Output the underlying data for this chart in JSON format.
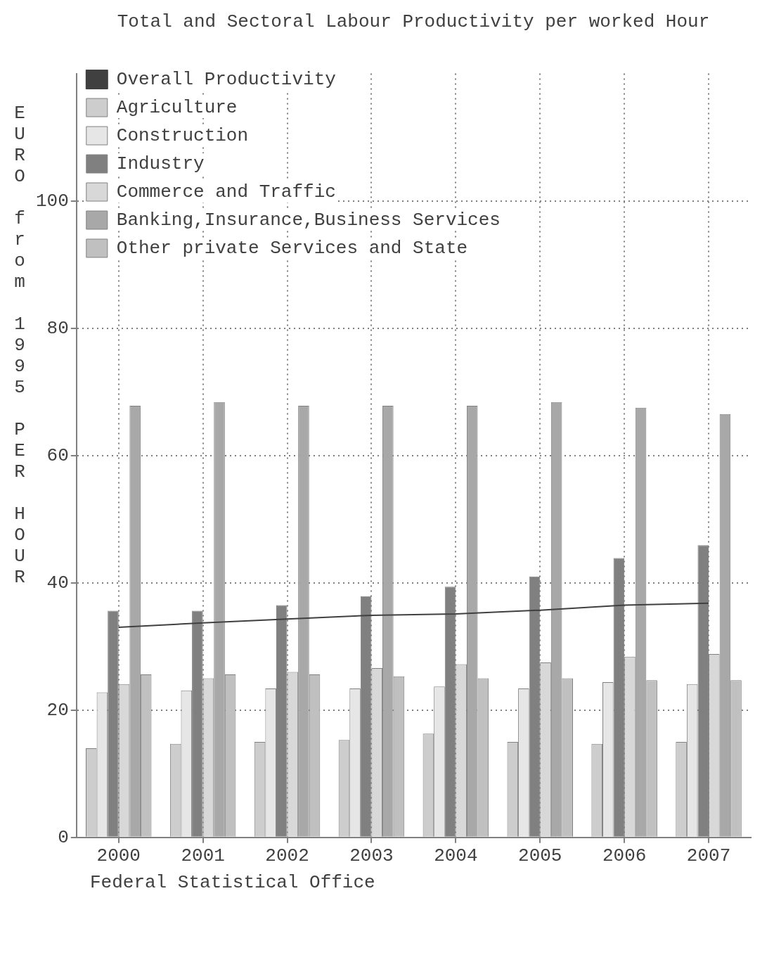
{
  "chart_data": {
    "type": "bar",
    "title": "Total and Sectoral Labour Productivity per worked Hour",
    "ylabel": "EURO from 1995 PER HOUR",
    "annotations": [
      "Federal Statistical Office"
    ],
    "categories": [
      "2000",
      "2001",
      "2002",
      "2003",
      "2004",
      "2005",
      "2006",
      "2007"
    ],
    "series": [
      {
        "name": "Overall Productivity",
        "type": "line",
        "color": "#404040",
        "values": [
          33.0,
          33.7,
          34.3,
          34.9,
          35.1,
          35.7,
          36.5,
          36.8
        ]
      },
      {
        "name": "Agriculture",
        "color": "#cdcdcd",
        "values": [
          14.0,
          14.7,
          15.0,
          15.3,
          16.3,
          15.0,
          14.7,
          15.0
        ]
      },
      {
        "name": "Construction",
        "color": "#e6e6e6",
        "values": [
          22.8,
          23.1,
          23.4,
          23.4,
          23.7,
          23.4,
          24.4,
          24.1
        ]
      },
      {
        "name": "Industry",
        "color": "#808080",
        "values": [
          35.6,
          35.6,
          36.5,
          37.9,
          39.4,
          41.0,
          43.9,
          45.9
        ]
      },
      {
        "name": "Commerce and Traffic",
        "color": "#d8d8d8",
        "values": [
          24.1,
          25.0,
          26.0,
          26.6,
          27.2,
          27.5,
          28.4,
          28.8
        ]
      },
      {
        "name": "Banking,Insurance,Business Services",
        "color": "#a8a8a8",
        "values": [
          67.8,
          68.4,
          67.8,
          67.8,
          67.8,
          68.4,
          67.5,
          66.5
        ]
      },
      {
        "name": "Other private Services and State",
        "color": "#c0c0c0",
        "values": [
          25.6,
          25.6,
          25.6,
          25.3,
          25.0,
          25.0,
          24.7,
          24.7
        ]
      }
    ],
    "ylim": [
      0,
      120
    ],
    "yticks": [
      0,
      20,
      40,
      60,
      80,
      100
    ],
    "grid": true,
    "legend": "top left",
    "marker": "none"
  }
}
